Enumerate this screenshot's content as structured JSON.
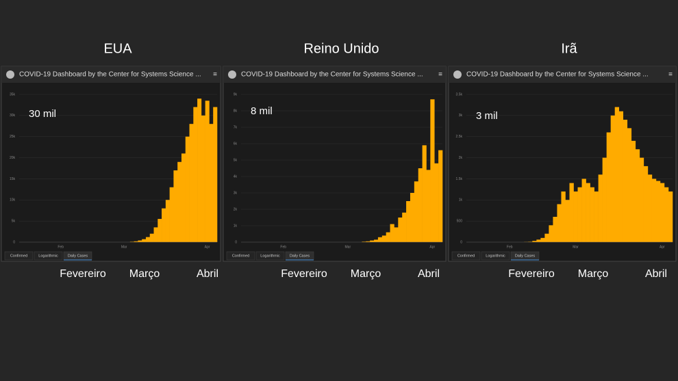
{
  "chart_data": [
    {
      "type": "bar",
      "title": "EUA",
      "dashboard_title": "COVID-19 Dashboard by the Center for Systems Science ...",
      "tabs": [
        "Confirmed",
        "Logarithmic",
        "Daily Cases"
      ],
      "annotation": "30 mil",
      "month_labels": [
        "Fevereiro",
        "Março",
        "Abril"
      ],
      "color": "#ffab00",
      "grid": true,
      "categories": [
        null,
        null,
        null,
        null,
        null,
        null,
        null,
        null,
        null,
        null,
        "Feb",
        null,
        null,
        null,
        null,
        null,
        null,
        null,
        null,
        null,
        null,
        null,
        null,
        null,
        null,
        null,
        "Mar",
        null,
        null,
        null,
        null,
        null,
        null,
        null,
        null,
        null,
        null,
        null,
        null,
        null,
        null,
        null,
        null,
        null,
        null,
        null,
        null,
        "Apr",
        null,
        null
      ],
      "values": [
        0,
        0,
        0,
        0,
        0,
        0,
        0,
        0,
        0,
        0,
        0,
        0,
        0,
        0,
        0,
        0,
        0,
        0,
        0,
        0,
        0,
        0,
        0,
        0,
        0,
        0,
        0,
        0,
        100,
        200,
        400,
        700,
        1200,
        2000,
        3500,
        5500,
        8000,
        10000,
        13000,
        17000,
        19000,
        21000,
        25000,
        28000,
        32000,
        34000,
        30000,
        33500,
        28000,
        32000
      ],
      "ylim": [
        0,
        35000
      ],
      "yticks": [
        0,
        {
          "value": 5000,
          "label": "5k"
        },
        {
          "value": 10000,
          "label": "10k"
        },
        {
          "value": 15000,
          "label": "15k"
        },
        {
          "value": 20000,
          "label": "20k"
        },
        {
          "value": 25000,
          "label": "25k"
        },
        {
          "value": 30000,
          "label": "30k"
        },
        {
          "value": 35000,
          "label": "35k"
        }
      ]
    },
    {
      "type": "bar",
      "title": "Reino Unido",
      "dashboard_title": "COVID-19 Dashboard by the Center for Systems Science ...",
      "tabs": [
        "Confirmed",
        "Logarithmic",
        "Daily Cases"
      ],
      "annotation": "8 mil",
      "month_labels": [
        "Fevereiro",
        "Março",
        "Abril"
      ],
      "color": "#ffab00",
      "grid": true,
      "categories": [
        null,
        null,
        null,
        null,
        null,
        null,
        null,
        null,
        null,
        null,
        "Feb",
        null,
        null,
        null,
        null,
        null,
        null,
        null,
        null,
        null,
        null,
        null,
        null,
        null,
        null,
        null,
        "Mar",
        null,
        null,
        null,
        null,
        null,
        null,
        null,
        null,
        null,
        null,
        null,
        null,
        null,
        null,
        null,
        null,
        null,
        null,
        null,
        null,
        "Apr",
        null,
        null
      ],
      "values": [
        0,
        0,
        0,
        0,
        0,
        0,
        0,
        0,
        0,
        0,
        0,
        0,
        0,
        0,
        0,
        0,
        0,
        0,
        0,
        0,
        0,
        0,
        0,
        0,
        0,
        0,
        0,
        0,
        0,
        0,
        30,
        50,
        100,
        150,
        300,
        400,
        600,
        1100,
        900,
        1500,
        1800,
        2500,
        3000,
        3700,
        4500,
        5900,
        4400,
        8700,
        4800,
        5600
      ],
      "ylim": [
        0,
        9000
      ],
      "yticks": [
        0,
        {
          "value": 1000,
          "label": "1k"
        },
        {
          "value": 2000,
          "label": "2k"
        },
        {
          "value": 3000,
          "label": "3k"
        },
        {
          "value": 4000,
          "label": "4k"
        },
        {
          "value": 5000,
          "label": "5k"
        },
        {
          "value": 6000,
          "label": "6k"
        },
        {
          "value": 7000,
          "label": "7k"
        },
        {
          "value": 8000,
          "label": "8k"
        },
        {
          "value": 9000,
          "label": "9k"
        }
      ]
    },
    {
      "type": "bar",
      "title": "Irã",
      "dashboard_title": "COVID-19 Dashboard by the Center for Systems Science ...",
      "tabs": [
        "Confirmed",
        "Logarithmic",
        "Daily Cases"
      ],
      "annotation": "3 mil",
      "month_labels": [
        "Fevereiro",
        "Março",
        "Abril"
      ],
      "color": "#ffab00",
      "grid": true,
      "categories": [
        null,
        null,
        null,
        null,
        null,
        null,
        null,
        null,
        null,
        null,
        "Feb",
        null,
        null,
        null,
        null,
        null,
        null,
        null,
        null,
        null,
        null,
        null,
        null,
        null,
        null,
        null,
        "Mar",
        null,
        null,
        null,
        null,
        null,
        null,
        null,
        null,
        null,
        null,
        null,
        null,
        null,
        null,
        null,
        null,
        null,
        null,
        null,
        null,
        "Apr",
        null,
        null
      ],
      "values": [
        0,
        0,
        0,
        0,
        0,
        0,
        0,
        0,
        0,
        0,
        0,
        0,
        0,
        0,
        5,
        10,
        30,
        60,
        100,
        200,
        400,
        600,
        900,
        1200,
        1000,
        1400,
        1200,
        1300,
        1500,
        1400,
        1300,
        1200,
        1600,
        2000,
        2600,
        3000,
        3200,
        3100,
        2900,
        2700,
        2400,
        2200,
        2000,
        1800,
        1600,
        1500,
        1450,
        1400,
        1300,
        1200
      ],
      "ylim": [
        0,
        3500
      ],
      "yticks": [
        0,
        500,
        {
          "value": 1000,
          "label": "1k"
        },
        {
          "value": 1500,
          "label": "1.5k"
        },
        {
          "value": 2000,
          "label": "2k"
        },
        {
          "value": 2500,
          "label": "2.5k"
        },
        {
          "value": 3000,
          "label": "3k"
        },
        {
          "value": 3500,
          "label": "3.5k"
        }
      ]
    }
  ]
}
